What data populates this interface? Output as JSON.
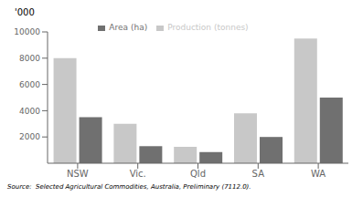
{
  "chart_data": {
    "type": "bar",
    "categories": [
      "NSW",
      "Vic.",
      "Qld",
      "SA",
      "WA"
    ],
    "series": [
      {
        "name": "Production (tonnes)",
        "color": "#c8c8c8",
        "values": [
          8000,
          3000,
          1250,
          3800,
          9500
        ]
      },
      {
        "name": "Area (ha)",
        "color": "#707070",
        "values": [
          3500,
          1300,
          850,
          2000,
          5000
        ]
      }
    ],
    "ylabel": "'000",
    "ylim": [
      0,
      10000
    ],
    "yticks": [
      2000,
      4000,
      6000,
      8000,
      10000
    ],
    "grid": false,
    "legend": "top",
    "annotations": [
      "Source:  Selected Agricultural Commodities, Australia, Preliminary (7112.0)."
    ]
  }
}
